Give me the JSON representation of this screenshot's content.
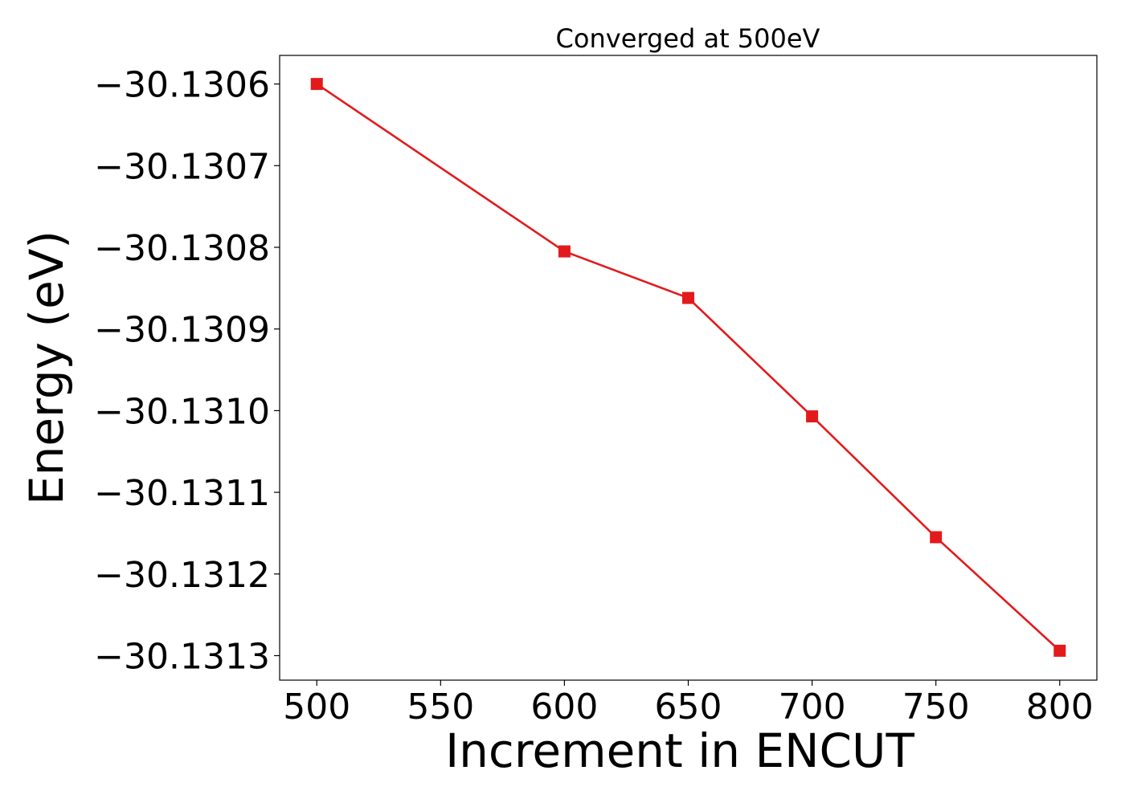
{
  "chart_data": {
    "type": "line",
    "title": "Converged at 500eV",
    "xlabel": "Increment in ENCUT",
    "ylabel": "Energy (eV)",
    "x": [
      500,
      600,
      650,
      700,
      750,
      800
    ],
    "series": [
      {
        "values": [
          -30.1306,
          -30.130805,
          -30.130862,
          -30.131007,
          -30.131155,
          -30.131294
        ],
        "color": "#e31a1c",
        "marker": "square"
      }
    ],
    "xlim": [
      485,
      815
    ],
    "ylim": [
      -30.13133,
      -30.130565
    ],
    "xticks": [
      500,
      550,
      600,
      650,
      700,
      750,
      800
    ],
    "xtick_labels": [
      "500",
      "550",
      "600",
      "650",
      "700",
      "750",
      "800"
    ],
    "yticks": [
      -30.1306,
      -30.1307,
      -30.1308,
      -30.1309,
      -30.131,
      -30.1311,
      -30.1312,
      -30.1313
    ],
    "ytick_labels": [
      "−30.1306",
      "−30.1307",
      "−30.1308",
      "−30.1309",
      "−30.1310",
      "−30.1311",
      "−30.1312",
      "−30.1313"
    ],
    "grid": false,
    "legend": "none"
  }
}
